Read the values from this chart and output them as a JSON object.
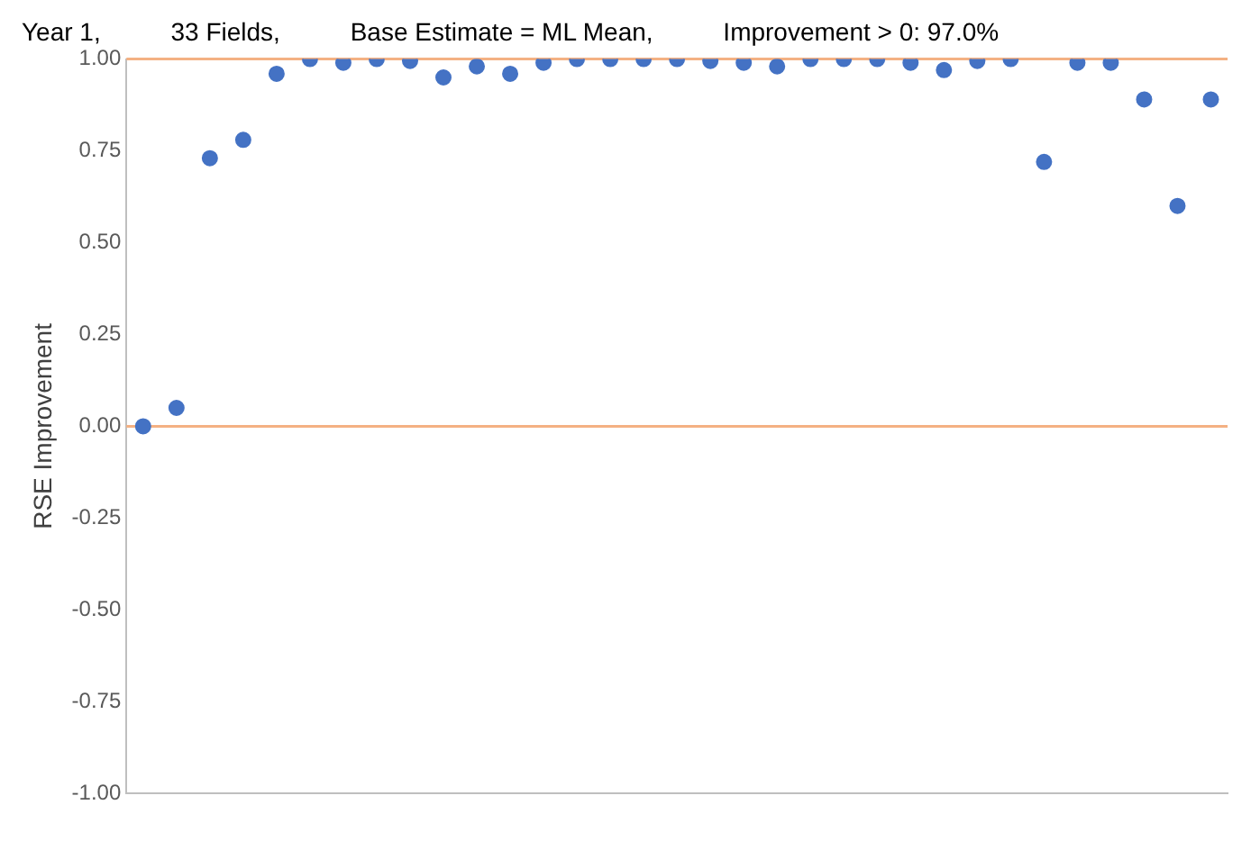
{
  "chart_data": {
    "type": "scatter",
    "title": "Year 1,          33 Fields,          Base Estimate = ML Mean,          Improvement > 0: 97.0%",
    "ylabel": "RSE Improvement",
    "categories": [
      null,
      null,
      null,
      null,
      null,
      null,
      null,
      null,
      null,
      null,
      null,
      null,
      null,
      null,
      null,
      null,
      null,
      null,
      null,
      null,
      null,
      null,
      null,
      null,
      null,
      null,
      null,
      null,
      null,
      null,
      null,
      null,
      null
    ],
    "series": [
      {
        "color": "#4472c4",
        "values": [
          0,
          0.05,
          0.73,
          0.78,
          0.96,
          1,
          0.99,
          1,
          0.995,
          0.95,
          0.98,
          0.96,
          0.99,
          1,
          1,
          1,
          1,
          0.995,
          0.99,
          0.98,
          1,
          1,
          1,
          0.99,
          0.97,
          0.995,
          1,
          0.72,
          0.99,
          0.99,
          0.89,
          0.6,
          0.89
        ]
      }
    ],
    "ylim": [
      -1,
      1
    ],
    "yticks": [
      {
        "value": -1,
        "label": "-1.00"
      },
      {
        "value": -0.75,
        "label": "-0.75"
      },
      {
        "value": -0.5,
        "label": "-0.50"
      },
      {
        "value": -0.25,
        "label": "-0.25"
      },
      {
        "value": 0,
        "label": "0.00"
      },
      {
        "value": 0.25,
        "label": "0.25"
      },
      {
        "value": 0.5,
        "label": "0.50"
      },
      {
        "value": 0.75,
        "label": "0.75"
      },
      {
        "value": 1,
        "label": "1.00"
      }
    ],
    "ref_lines": [
      {
        "axis": "y",
        "value": 1,
        "color": "#f4b183"
      },
      {
        "axis": "y",
        "value": 0,
        "color": "#f4b183"
      }
    ],
    "grid": false,
    "legend": false,
    "marker": "circle"
  }
}
